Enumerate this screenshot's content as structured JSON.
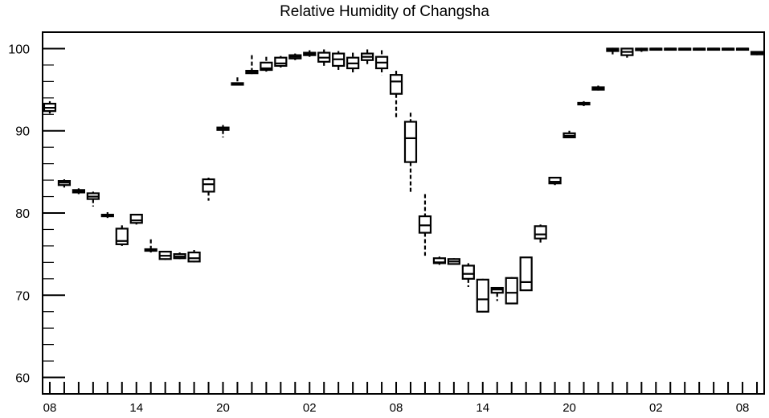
{
  "chart_data": {
    "type": "boxplot",
    "title": "Relative Humidity of Changsha",
    "xlabel": "",
    "ylabel": "",
    "ylim": [
      58,
      102
    ],
    "y_ticks": [
      60,
      70,
      80,
      90,
      100
    ],
    "x_range": [
      -0.5,
      49.5
    ],
    "x_tick_labels": [
      {
        "x": 0,
        "label": "08"
      },
      {
        "x": 6,
        "label": "14"
      },
      {
        "x": 12,
        "label": "20"
      },
      {
        "x": 18,
        "label": "02"
      },
      {
        "x": 24,
        "label": "08"
      },
      {
        "x": 30,
        "label": "14"
      },
      {
        "x": 36,
        "label": "20"
      },
      {
        "x": 42,
        "label": "02"
      },
      {
        "x": 48,
        "label": "08"
      }
    ],
    "boxes": [
      {
        "x": 0,
        "min": 92.1,
        "q1": 92.4,
        "median": 92.8,
        "q3": 93.3,
        "max": 93.6
      },
      {
        "x": 1,
        "min": 83.1,
        "q1": 83.4,
        "median": 83.7,
        "q3": 83.9,
        "max": 84.1
      },
      {
        "x": 2,
        "min": 82.3,
        "q1": 82.5,
        "median": 82.7,
        "q3": 82.8,
        "max": 83.0
      },
      {
        "x": 3,
        "min": 80.8,
        "q1": 81.7,
        "median": 82.0,
        "q3": 82.4,
        "max": 82.6
      },
      {
        "x": 4,
        "min": 79.4,
        "q1": 79.6,
        "median": 79.7,
        "q3": 79.8,
        "max": 80.1
      },
      {
        "x": 5,
        "min": 76.0,
        "q1": 76.2,
        "median": 76.6,
        "q3": 78.1,
        "max": 78.5
      },
      {
        "x": 6,
        "min": 78.6,
        "q1": 78.8,
        "median": 79.1,
        "q3": 79.8,
        "max": 79.9
      },
      {
        "x": 7,
        "min": 75.2,
        "q1": 75.4,
        "median": 75.5,
        "q3": 75.6,
        "max": 76.8
      },
      {
        "x": 8,
        "min": 74.3,
        "q1": 74.4,
        "median": 74.8,
        "q3": 75.3,
        "max": 75.4
      },
      {
        "x": 9,
        "min": 74.4,
        "q1": 74.5,
        "median": 74.7,
        "q3": 75.0,
        "max": 75.2
      },
      {
        "x": 10,
        "min": 74.0,
        "q1": 74.1,
        "median": 74.5,
        "q3": 75.2,
        "max": 75.5
      },
      {
        "x": 11,
        "min": 81.5,
        "q1": 82.6,
        "median": 83.5,
        "q3": 84.1,
        "max": 84.3
      },
      {
        "x": 12,
        "min": 89.2,
        "q1": 90.1,
        "median": 90.3,
        "q3": 90.4,
        "max": 90.7
      },
      {
        "x": 13,
        "min": 95.5,
        "q1": 95.6,
        "median": 95.7,
        "q3": 95.8,
        "max": 96.5
      },
      {
        "x": 14,
        "min": 96.9,
        "q1": 97.0,
        "median": 97.1,
        "q3": 97.3,
        "max": 99.2
      },
      {
        "x": 15,
        "min": 97.2,
        "q1": 97.4,
        "median": 97.6,
        "q3": 98.3,
        "max": 99.0
      },
      {
        "x": 16,
        "min": 97.7,
        "q1": 97.9,
        "median": 98.2,
        "q3": 98.9,
        "max": 99.1
      },
      {
        "x": 17,
        "min": 98.6,
        "q1": 98.8,
        "median": 99.0,
        "q3": 99.2,
        "max": 99.4
      },
      {
        "x": 18,
        "min": 99.0,
        "q1": 99.2,
        "median": 99.3,
        "q3": 99.5,
        "max": 99.8
      },
      {
        "x": 19,
        "min": 97.8,
        "q1": 98.4,
        "median": 98.9,
        "q3": 99.5,
        "max": 99.9
      },
      {
        "x": 20,
        "min": 97.3,
        "q1": 97.9,
        "median": 98.7,
        "q3": 99.4,
        "max": 99.7
      },
      {
        "x": 21,
        "min": 97.0,
        "q1": 97.6,
        "median": 98.2,
        "q3": 98.9,
        "max": 99.5
      },
      {
        "x": 22,
        "min": 98.0,
        "q1": 98.6,
        "median": 99.0,
        "q3": 99.4,
        "max": 99.9
      },
      {
        "x": 23,
        "min": 96.8,
        "q1": 97.6,
        "median": 98.3,
        "q3": 99.0,
        "max": 99.8
      },
      {
        "x": 24,
        "min": 91.4,
        "q1": 94.5,
        "median": 96.0,
        "q3": 96.8,
        "max": 97.3
      },
      {
        "x": 25,
        "min": 82.3,
        "q1": 86.2,
        "median": 89.1,
        "q3": 91.1,
        "max": 92.2
      },
      {
        "x": 26,
        "min": 74.8,
        "q1": 77.6,
        "median": 78.5,
        "q3": 79.6,
        "max": 82.3
      },
      {
        "x": 27,
        "min": 73.7,
        "q1": 73.9,
        "median": 74.0,
        "q3": 74.5,
        "max": 74.7
      },
      {
        "x": 28,
        "min": 73.7,
        "q1": 73.8,
        "median": 74.1,
        "q3": 74.4,
        "max": 74.5
      },
      {
        "x": 29,
        "min": 71.0,
        "q1": 72.0,
        "median": 72.6,
        "q3": 73.6,
        "max": 73.9
      },
      {
        "x": 30,
        "min": 68.0,
        "q1": 68.0,
        "median": 69.5,
        "q3": 71.9,
        "max": 72.0
      },
      {
        "x": 31,
        "min": 69.3,
        "q1": 70.3,
        "median": 70.7,
        "q3": 70.9,
        "max": 71.0
      },
      {
        "x": 32,
        "min": 69.0,
        "q1": 69.0,
        "median": 70.3,
        "q3": 72.1,
        "max": 72.2
      },
      {
        "x": 33,
        "min": 70.6,
        "q1": 70.6,
        "median": 71.6,
        "q3": 74.6,
        "max": 74.6
      },
      {
        "x": 34,
        "min": 76.3,
        "q1": 76.9,
        "median": 77.4,
        "q3": 78.4,
        "max": 78.6
      },
      {
        "x": 35,
        "min": 83.4,
        "q1": 83.6,
        "median": 83.8,
        "q3": 84.3,
        "max": 84.4
      },
      {
        "x": 36,
        "min": 89.1,
        "q1": 89.2,
        "median": 89.4,
        "q3": 89.7,
        "max": 90.0
      },
      {
        "x": 37,
        "min": 93.0,
        "q1": 93.2,
        "median": 93.3,
        "q3": 93.4,
        "max": 93.6
      },
      {
        "x": 38,
        "min": 94.9,
        "q1": 95.0,
        "median": 95.1,
        "q3": 95.3,
        "max": 95.5
      },
      {
        "x": 39,
        "min": 99.3,
        "q1": 99.7,
        "median": 99.8,
        "q3": 100.0,
        "max": 100.1
      },
      {
        "x": 40,
        "min": 98.9,
        "q1": 99.2,
        "median": 99.6,
        "q3": 100.0,
        "max": 100.0
      },
      {
        "x": 41,
        "min": 99.6,
        "q1": 99.8,
        "median": 99.9,
        "q3": 100.0,
        "max": 100.1
      },
      {
        "x": 42,
        "min": 99.9,
        "q1": 100.0,
        "median": 100.0,
        "q3": 100.0,
        "max": 100.0
      },
      {
        "x": 43,
        "min": 99.9,
        "q1": 100.0,
        "median": 100.0,
        "q3": 100.0,
        "max": 100.0
      },
      {
        "x": 44,
        "min": 99.9,
        "q1": 100.0,
        "median": 100.0,
        "q3": 100.0,
        "max": 100.0
      },
      {
        "x": 45,
        "min": 99.9,
        "q1": 100.0,
        "median": 100.0,
        "q3": 100.0,
        "max": 100.0
      },
      {
        "x": 46,
        "min": 99.9,
        "q1": 100.0,
        "median": 100.0,
        "q3": 100.0,
        "max": 100.0
      },
      {
        "x": 47,
        "min": 99.8,
        "q1": 99.9,
        "median": 100.0,
        "q3": 100.0,
        "max": 100.0
      },
      {
        "x": 48,
        "min": 99.8,
        "q1": 99.9,
        "median": 100.0,
        "q3": 100.0,
        "max": 100.0
      },
      {
        "x": 49,
        "min": 99.2,
        "q1": 99.3,
        "median": 99.5,
        "q3": 99.6,
        "max": 99.7
      }
    ],
    "grid": false,
    "legend": "none"
  }
}
